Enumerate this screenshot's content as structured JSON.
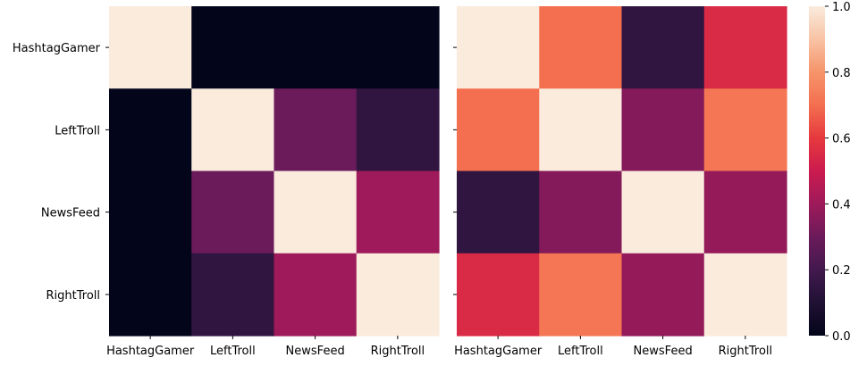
{
  "chart_data": [
    {
      "type": "heatmap",
      "title": "",
      "xlabel": "",
      "ylabel": "",
      "x": [
        "HashtagGamer",
        "LeftTroll",
        "NewsFeed",
        "RightTroll"
      ],
      "y": [
        "HashtagGamer",
        "LeftTroll",
        "NewsFeed",
        "RightTroll"
      ],
      "values": [
        [
          1.0,
          0.0,
          0.0,
          0.0
        ],
        [
          0.0,
          1.0,
          0.3,
          0.15
        ],
        [
          0.0,
          0.3,
          1.0,
          0.4
        ],
        [
          0.0,
          0.15,
          0.4,
          1.0
        ]
      ],
      "y_tick_labels_visible": true
    },
    {
      "type": "heatmap",
      "title": "",
      "xlabel": "",
      "ylabel": "",
      "x": [
        "HashtagGamer",
        "LeftTroll",
        "NewsFeed",
        "RightTroll"
      ],
      "y": [
        "HashtagGamer",
        "LeftTroll",
        "NewsFeed",
        "RightTroll"
      ],
      "values": [
        [
          1.0,
          0.7,
          0.15,
          0.55
        ],
        [
          0.7,
          1.0,
          0.35,
          0.72
        ],
        [
          0.15,
          0.35,
          1.0,
          0.38
        ],
        [
          0.55,
          0.72,
          0.38,
          1.0
        ]
      ],
      "y_tick_labels_visible": false
    }
  ],
  "colorbar": {
    "colormap": "rocket",
    "range": [
      0.0,
      1.0
    ],
    "ticks": [
      "0.0",
      "0.2",
      "0.4",
      "0.6",
      "0.8",
      "1.0"
    ]
  }
}
